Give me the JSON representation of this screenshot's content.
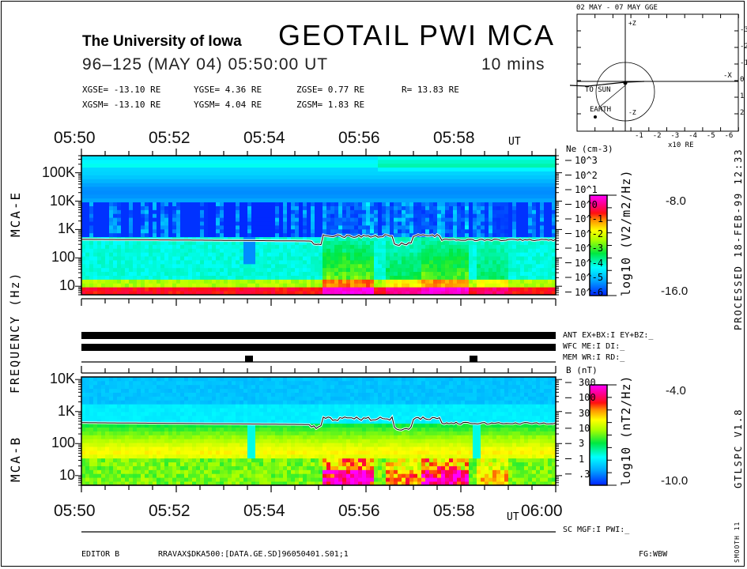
{
  "header": {
    "institution": "The University of Iowa",
    "title": "GEOTAIL  PWI  MCA",
    "date_time": "96–125 (MAY 04) 05:50:00 UT",
    "duration": "10 mins",
    "coords_gse": [
      "XGSE= -13.10 RE",
      "YGSE=   4.36 RE",
      "ZGSE=   0.77 RE",
      "R= 13.83 RE"
    ],
    "coords_gsm": [
      "XGSM= -13.10 RE",
      "YGSM=   4.04 RE",
      "ZGSM=   1.83 RE"
    ]
  },
  "orbit_plot": {
    "title": "02 MAY - 07 MAY  GGE",
    "x_ticks": [
      "-1",
      "-2",
      "-3",
      "-4",
      "-5",
      "-6"
    ],
    "x_unit": "x10 RE",
    "y_ticks": [
      "-3",
      "-2",
      "-1",
      "0",
      "1",
      "2"
    ],
    "labels": {
      "sun": "TO SUN",
      "earth": "EARTH",
      "minus_x": "-X",
      "y_top": "-Y",
      "y_bottom": "-Z",
      "z_top": "+Z",
      "z_bottom": "+Y"
    }
  },
  "time_axis": {
    "top_labels": [
      "05:50",
      "05:52",
      "05:54",
      "05:56",
      "05:58"
    ],
    "top_unit": "UT",
    "bottom_labels": [
      "05:50",
      "05:52",
      "05:54",
      "05:56",
      "05:58"
    ],
    "bottom_unit": "UT",
    "bottom_end": "06:00"
  },
  "left_labels": {
    "freq_axis": "FREQUENCY (Hz)",
    "mca_e": "MCA-E",
    "mca_b": "MCA-B"
  },
  "right_side": {
    "processed": "PROCESSED 18-FEB-99  12:33",
    "version": "GTLSPC   V1.8",
    "smooth": "SMOOTH 11"
  },
  "status_lines": {
    "ant": "ANT EX+BX:I EY+BZ:_",
    "wfc": "WFC ME:I     DI:_",
    "mem": "MEM WR:I     RD:_",
    "sc": "SC MGF:I  PWI:_"
  },
  "footer": {
    "editor": "EDITOR B",
    "file": "RRAVAX$DKA500:[DATA.GE.SD]96050401.S01;1",
    "fg": "FG:WBW"
  },
  "chart_data": [
    {
      "type": "heatmap",
      "title": "MCA-E electric field spectrogram",
      "xlabel": "UT",
      "ylabel": "FREQUENCY (Hz)",
      "x_range": [
        "05:50",
        "06:00"
      ],
      "y_scale": "log",
      "y_ticks": [
        "10",
        "100",
        "1K",
        "10K",
        "100K"
      ],
      "y_range_hz": [
        5,
        400000
      ],
      "right_axis_label": "Ne (cm-3)",
      "right_axis_ticks": [
        "10^3",
        "10^2",
        "10^1",
        "10^0",
        "10^-1",
        "10^-2",
        "10^-3",
        "10^-4",
        "10^-5",
        "10^-6"
      ],
      "colorbar": {
        "label": "log10 (V2/m2/Hz)",
        "max": "-8.0",
        "min": "-16.0"
      },
      "overlay_line": "electron plasma frequency trace (~400 Hz, dips near 05:55 and 05:56:45)"
    },
    {
      "type": "heatmap",
      "title": "MCA-B magnetic field spectrogram",
      "xlabel": "UT",
      "ylabel": "FREQUENCY (Hz)",
      "x_range": [
        "05:50",
        "06:00"
      ],
      "y_scale": "log",
      "y_ticks": [
        "10",
        "100",
        "1K",
        "10K"
      ],
      "y_range_hz": [
        5,
        12000
      ],
      "right_axis_label": "B (nT)",
      "right_axis_ticks": [
        "300",
        "100",
        "30",
        "10",
        "3",
        "1",
        ".3"
      ],
      "colorbar": {
        "label": "log10 (nT2/Hz)",
        "max": "-4.0",
        "min": "-10.0"
      },
      "overlay_line": "electron cyclotron frequency trace"
    }
  ],
  "colors": {
    "scale": [
      "#0000ff",
      "#0050ff",
      "#00a0ff",
      "#00ffff",
      "#00ff60",
      "#20e000",
      "#a0ff00",
      "#ffff00",
      "#ffa000",
      "#ff2000",
      "#ff0060",
      "#ff00ff"
    ]
  }
}
